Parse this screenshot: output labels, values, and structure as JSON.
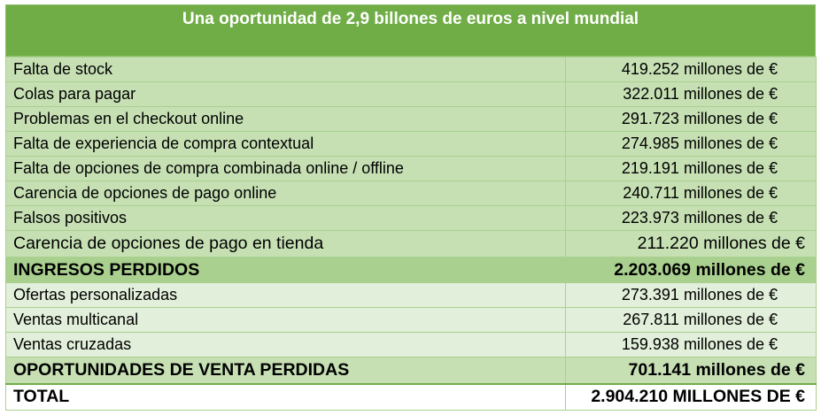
{
  "title": "Una oportunidad de 2,9 billones de euros a nivel mundial",
  "rows": [
    {
      "label": "Falta de stock",
      "value": "419.252 millones de €"
    },
    {
      "label": "Colas para pagar",
      "value": "322.011 millones de €"
    },
    {
      "label": "Problemas en el checkout online",
      "value": "291.723 millones de €"
    },
    {
      "label": "Falta de experiencia de compra contextual",
      "value": "274.985 millones de €"
    },
    {
      "label": "Falta de opciones de compra combinada online / offline",
      "value": "219.191 millones de €"
    },
    {
      "label": "Carencia de opciones de pago online",
      "value": "240.711 millones de €"
    },
    {
      "label": "Falsos positivos",
      "value": "223.973 millones de €"
    },
    {
      "label": "Carencia de opciones de pago en tienda",
      "value": "211.220 millones de €"
    },
    {
      "label": "INGRESOS PERDIDOS",
      "value": "2.203.069 millones de €"
    },
    {
      "label": "Ofertas personalizadas",
      "value": "273.391 millones de €"
    },
    {
      "label": "Ventas multicanal",
      "value": "267.811 millones de €"
    },
    {
      "label": "Ventas cruzadas",
      "value": "159.938 millones de €"
    },
    {
      "label": "OPORTUNIDADES DE VENTA PERDIDAS",
      "value": "701.141 millones de €"
    },
    {
      "label": "TOTAL",
      "value": "2.904.210 MILLONES DE €"
    }
  ],
  "colors": {
    "header": "#70ad47",
    "row_light": "#c6e0b4",
    "row_subtotal": "#a9d08e",
    "row_pale": "#e2efda"
  }
}
